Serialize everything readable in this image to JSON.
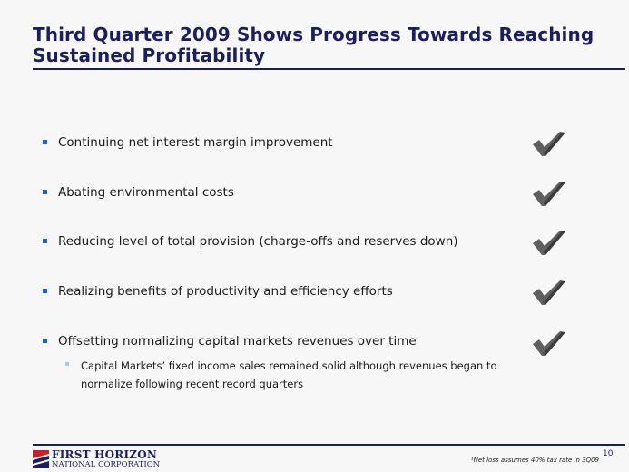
{
  "slide": {
    "title": "Third Quarter 2009 Shows Progress Towards Reaching Sustained Profitability",
    "bullets": [
      {
        "text": "Continuing net interest margin improvement",
        "checked": true
      },
      {
        "text": "Abating environmental costs",
        "checked": true
      },
      {
        "text": "Reducing level of total provision (charge-offs and reserves down)",
        "checked": true
      },
      {
        "text": "Realizing benefits of productivity and efficiency efforts",
        "checked": true
      },
      {
        "text": "Offsetting normalizing capital markets revenues over time",
        "checked": true
      }
    ],
    "sub_bullets": [
      {
        "text": "Capital Markets’ fixed income sales remained solid although revenues began to normalize following recent record quarters"
      }
    ]
  },
  "footer": {
    "logo_line1": "First Horizon",
    "logo_line2": "National Corporation",
    "footnote": "¹Net loss assumes 40% tax rate in 3Q09",
    "page_number": "10"
  },
  "colors": {
    "title": "#1b1f5e",
    "bullet_marker": "#1f5fd8",
    "sub_bullet_marker": "#a9c6e8",
    "checkmark": "#5f5f5f",
    "logo_red": "#c8202f",
    "background": "#f7f7f7"
  },
  "icons": {
    "check": "checkmark-icon",
    "logo": "first-horizon-logo-icon"
  }
}
